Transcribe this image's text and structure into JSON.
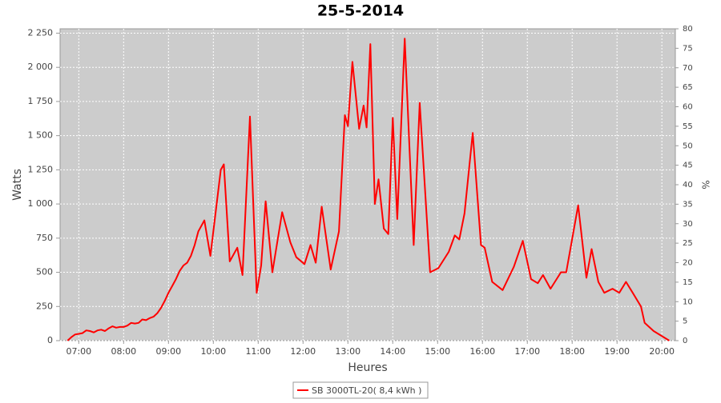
{
  "chart_data": {
    "type": "line",
    "title": "25-5-2014",
    "x_label": "Heures",
    "y_label": "Watts",
    "y2_label": "%",
    "x": [
      "06:45",
      "06:50",
      "06:55",
      "07:00",
      "07:05",
      "07:10",
      "07:15",
      "07:20",
      "07:25",
      "07:30",
      "07:35",
      "07:40",
      "07:45",
      "07:50",
      "07:55",
      "08:00",
      "08:05",
      "08:10",
      "08:15",
      "08:20",
      "08:25",
      "08:30",
      "08:35",
      "08:40",
      "08:45",
      "08:50",
      "08:55",
      "09:00",
      "09:05",
      "09:10",
      "09:15",
      "09:20",
      "09:25",
      "09:30",
      "09:35",
      "09:40",
      "09:48",
      "09:56",
      "10:10",
      "10:14",
      "10:22",
      "10:32",
      "10:39",
      "10:49",
      "10:58",
      "11:04",
      "11:10",
      "11:19",
      "11:32",
      "11:43",
      "11:51",
      "12:02",
      "12:10",
      "12:17",
      "12:25",
      "12:37",
      "12:48",
      "12:56",
      "13:00",
      "13:06",
      "13:15",
      "13:21",
      "13:25",
      "13:30",
      "13:36",
      "13:41",
      "13:48",
      "13:54",
      "14:00",
      "14:06",
      "14:16",
      "14:28",
      "14:36",
      "14:50",
      "15:01",
      "15:15",
      "15:23",
      "15:29",
      "15:36",
      "15:47",
      "15:58",
      "16:03",
      "16:13",
      "16:27",
      "16:42",
      "16:54",
      "17:05",
      "17:14",
      "17:21",
      "17:31",
      "17:45",
      "17:52",
      "18:08",
      "18:19",
      "18:26",
      "18:35",
      "18:43",
      "18:54",
      "19:03",
      "19:12",
      "19:21",
      "19:32",
      "19:37",
      "19:49",
      "20:01",
      "20:10"
    ],
    "series": [
      {
        "name": "SB 3000TL-20( 8,4 kWh )",
        "color": "#ff0000",
        "values": [
          0,
          25,
          45,
          50,
          55,
          75,
          70,
          60,
          75,
          80,
          70,
          90,
          105,
          95,
          100,
          100,
          110,
          130,
          125,
          130,
          155,
          150,
          165,
          175,
          200,
          240,
          290,
          350,
          400,
          450,
          510,
          550,
          570,
          620,
          700,
          800,
          880,
          620,
          1250,
          1290,
          580,
          680,
          480,
          1640,
          350,
          550,
          1020,
          500,
          940,
          720,
          610,
          560,
          700,
          570,
          980,
          520,
          800,
          1650,
          1570,
          2040,
          1550,
          1720,
          1560,
          2170,
          1000,
          1180,
          820,
          780,
          1630,
          890,
          2210,
          700,
          1740,
          500,
          530,
          650,
          770,
          740,
          930,
          1520,
          700,
          680,
          430,
          370,
          540,
          730,
          450,
          420,
          480,
          380,
          500,
          500,
          990,
          460,
          670,
          430,
          350,
          380,
          350,
          430,
          350,
          250,
          130,
          70,
          30,
          0
        ]
      }
    ],
    "xlim": [
      "06:35",
      "20:18"
    ],
    "xticks": [
      "07:00",
      "08:00",
      "09:00",
      "10:00",
      "11:00",
      "12:00",
      "13:00",
      "14:00",
      "15:00",
      "16:00",
      "17:00",
      "18:00",
      "19:00",
      "20:00"
    ],
    "ylim": [
      0,
      2282
    ],
    "yticks": [
      0,
      250,
      500,
      750,
      {
        "value": 1000,
        "label": "1 000"
      },
      {
        "value": 1250,
        "label": "1 250"
      },
      {
        "value": 1500,
        "label": "1 500"
      },
      {
        "value": 1750,
        "label": "1 750"
      },
      {
        "value": 2000,
        "label": "2 000"
      },
      {
        "value": 2250,
        "label": "2 250"
      }
    ],
    "y2lim": [
      0,
      80
    ],
    "y2ticks": [
      0,
      5,
      10,
      15,
      20,
      25,
      30,
      35,
      40,
      45,
      50,
      55,
      60,
      65,
      70,
      75,
      80
    ],
    "grid": true,
    "legend": "bottom"
  }
}
